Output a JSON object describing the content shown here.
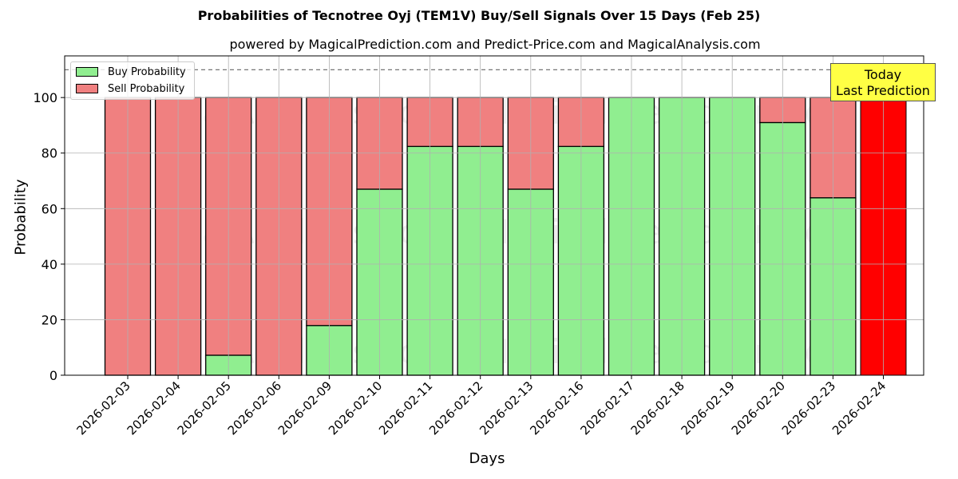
{
  "header": {
    "title": "Probabilities of Tecnotree Oyj (TEM1V) Buy/Sell Signals Over 15 Days (Feb 25)",
    "subtitle": "powered by MagicalPrediction.com and Predict-Price.com and MagicalAnalysis.com"
  },
  "legend": {
    "buy_label": "Buy Probability",
    "sell_label": "Sell Probability"
  },
  "annotation": {
    "line1": "Today",
    "line2": "Last Prediction"
  },
  "watermarks": [
    "MagicalAnalysis.com",
    "MagicalPrediction.com"
  ],
  "colors": {
    "buy": "#90ee90",
    "sell": "#f08080",
    "today": "#ff0000",
    "annotation_bg": "#ffff44",
    "grid": "#b0b0b0"
  },
  "chart_data": {
    "type": "bar",
    "stacked": true,
    "title": "Probabilities of Tecnotree Oyj (TEM1V) Buy/Sell Signals Over 15 Days (Feb 25)",
    "subtitle": "powered by MagicalPrediction.com and Predict-Price.com and MagicalAnalysis.com",
    "xlabel": "Days",
    "ylabel": "Probability",
    "ylim": [
      0,
      115
    ],
    "yticks": [
      0,
      20,
      40,
      60,
      80,
      100
    ],
    "reference_line": 110,
    "grid": true,
    "legend_position": "upper left",
    "categories": [
      "2026-02-03",
      "2026-02-04",
      "2026-02-05",
      "2026-02-06",
      "2026-02-09",
      "2026-02-10",
      "2026-02-11",
      "2026-02-12",
      "2026-02-13",
      "2026-02-16",
      "2026-02-17",
      "2026-02-18",
      "2026-02-19",
      "2026-02-20",
      "2026-02-23",
      "2026-02-24"
    ],
    "series": [
      {
        "name": "Buy Probability",
        "values": [
          0,
          0,
          7.2,
          0,
          17.9,
          67,
          82.4,
          82.4,
          67,
          82.4,
          100,
          100,
          100,
          91,
          63.9,
          0
        ]
      },
      {
        "name": "Sell Probability",
        "values": [
          100,
          100,
          92.8,
          100,
          82.1,
          33,
          17.6,
          17.6,
          33,
          17.6,
          0,
          0,
          0,
          9,
          36.1,
          100
        ]
      }
    ],
    "highlight": {
      "category": "2026-02-24",
      "label": "Today / Last Prediction",
      "color": "#ff0000",
      "value": 100
    }
  }
}
